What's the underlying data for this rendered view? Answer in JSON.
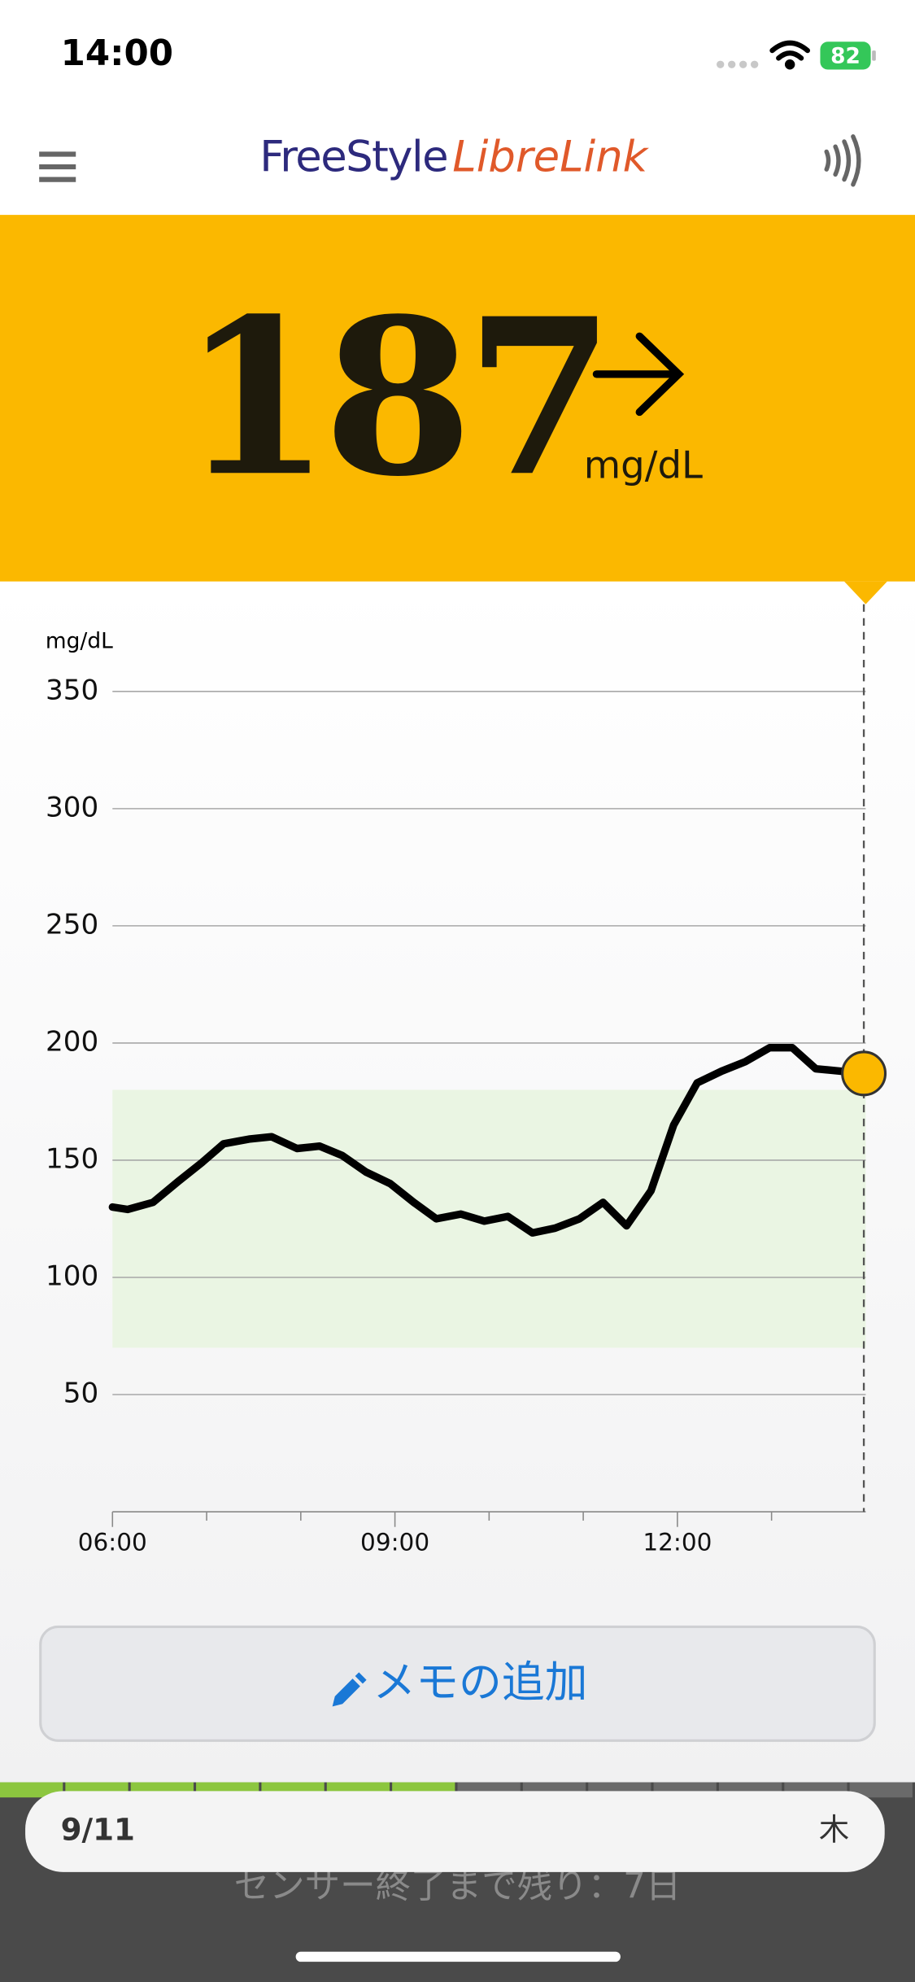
{
  "status_bar": {
    "time": "14:00",
    "battery": "82"
  },
  "header": {
    "brand_1": "FreeStyle",
    "brand_2": "LibreLink"
  },
  "reading": {
    "value": 187,
    "unit": "mg/dL"
  },
  "chart_data": {
    "type": "line",
    "y_label": "mg/dL",
    "color": "#000000",
    "x": [
      6.0,
      6.16,
      6.43,
      6.7,
      6.95,
      7.18,
      7.45,
      7.69,
      7.96,
      8.2,
      8.44,
      8.69,
      8.95,
      9.2,
      9.44,
      9.7,
      9.95,
      10.2,
      10.46,
      10.7,
      10.96,
      11.21,
      11.46,
      11.72,
      11.96,
      12.21,
      12.47,
      12.72,
      12.98,
      13.22,
      13.47,
      13.73,
      13.98
    ],
    "values": [
      130,
      129,
      132,
      141,
      149,
      157,
      159,
      160,
      155,
      156,
      152,
      145,
      140,
      132,
      125,
      127,
      124,
      126,
      119,
      121,
      125,
      132,
      122,
      137,
      165,
      183,
      188,
      192,
      198,
      198,
      189,
      188,
      187
    ],
    "xlim": [
      6,
      14
    ],
    "xticks": [
      {
        "value": 6,
        "label": "06:00"
      },
      {
        "value": 9,
        "label": "09:00"
      },
      {
        "value": 12,
        "label": "12:00"
      }
    ],
    "xminor": [
      7,
      8,
      10,
      11,
      13
    ],
    "ylim": [
      0,
      350
    ],
    "yticks": [
      50,
      100,
      150,
      200,
      250,
      300,
      350
    ],
    "target_range": [
      70,
      180
    ],
    "grid": true
  },
  "memo_button": "メモの追加",
  "footer": {
    "date": "9/11",
    "weekday": "木",
    "sensor_text": "センサー終了まで残り：7日",
    "segments_total": 14,
    "segments_filled": 7
  }
}
